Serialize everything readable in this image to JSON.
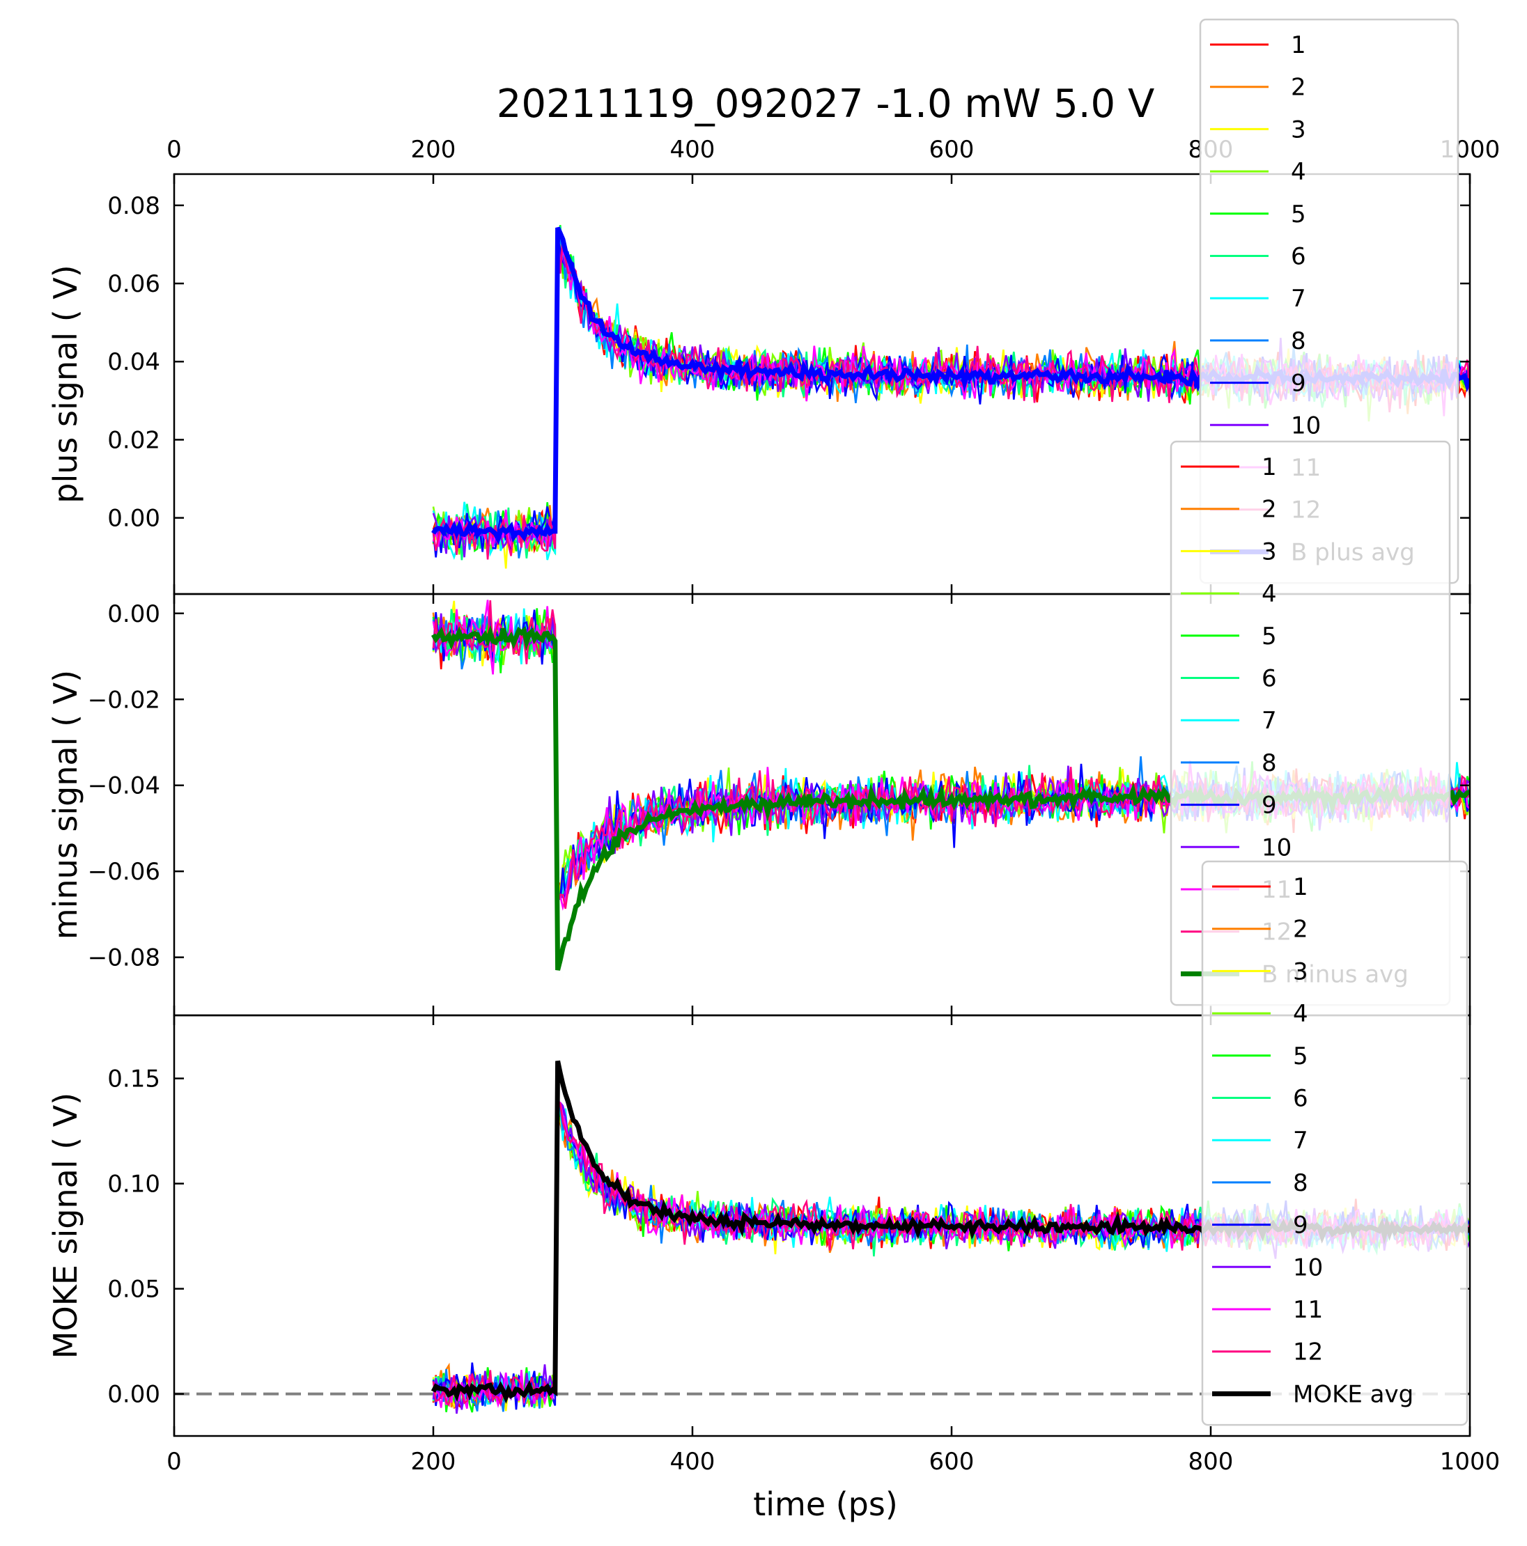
{
  "figure": {
    "title": "20211119_092027    -1.0 mW    5.0 V",
    "xlabel": "time (ps)"
  },
  "chart_data": [
    {
      "type": "line",
      "panel": "plus",
      "ylabel": "plus signal  ( V)",
      "xlim": [
        0,
        1000
      ],
      "ylim": [
        -0.0195,
        0.088
      ],
      "xticks": [
        "0",
        "200",
        "400",
        "600",
        "800",
        "1000"
      ],
      "yticks": [
        0.0,
        0.02,
        0.04,
        0.06,
        0.08
      ],
      "ytick_labels": [
        "0.00",
        "0.02",
        "0.04",
        "0.06",
        "0.08"
      ],
      "x_range": [
        200,
        1000
      ],
      "step_time": 296,
      "baseline": -0.0035,
      "peak": 0.068,
      "tail": 0.0355,
      "decay_ps": 28,
      "slow_offset": 0.0035,
      "slow_decay_ps": 250,
      "noise": 0.0028,
      "series": [
        {
          "name": "1",
          "color": "#ff0000"
        },
        {
          "name": "2",
          "color": "#ff7f00"
        },
        {
          "name": "3",
          "color": "#ffff00"
        },
        {
          "name": "4",
          "color": "#80ff00"
        },
        {
          "name": "5",
          "color": "#00ff00"
        },
        {
          "name": "6",
          "color": "#00ff80"
        },
        {
          "name": "7",
          "color": "#00ffff"
        },
        {
          "name": "8",
          "color": "#0080ff"
        },
        {
          "name": "9",
          "color": "#0000ff"
        },
        {
          "name": "10",
          "color": "#7f00ff"
        },
        {
          "name": "11",
          "color": "#ff00ff"
        },
        {
          "name": "12",
          "color": "#ff0080"
        }
      ],
      "avg": {
        "name": "B plus avg",
        "color": "#0000ff",
        "peak": 0.075
      }
    },
    {
      "type": "line",
      "panel": "minus",
      "ylabel": "minus signal  ( V)",
      "xlim": [
        0,
        1000
      ],
      "ylim": [
        -0.0935,
        0.0045
      ],
      "xticks": [
        "0",
        "200",
        "400",
        "600",
        "800",
        "1000"
      ],
      "yticks": [
        0.0,
        -0.02,
        -0.04,
        -0.06,
        -0.08
      ],
      "ytick_labels": [
        "0.00",
        "−0.02",
        "−0.04",
        "−0.06",
        "−0.08"
      ],
      "x_range": [
        200,
        1000
      ],
      "step_time": 296,
      "baseline": -0.0055,
      "peak": -0.072,
      "tail": -0.0425,
      "decay_ps": 30,
      "slow_offset": -0.003,
      "slow_decay_ps": 250,
      "noise": 0.0028,
      "series": [
        {
          "name": "1",
          "color": "#ff0000"
        },
        {
          "name": "2",
          "color": "#ff7f00"
        },
        {
          "name": "3",
          "color": "#ffff00"
        },
        {
          "name": "4",
          "color": "#80ff00"
        },
        {
          "name": "5",
          "color": "#00ff00"
        },
        {
          "name": "6",
          "color": "#00ff80"
        },
        {
          "name": "7",
          "color": "#00ffff"
        },
        {
          "name": "8",
          "color": "#0080ff"
        },
        {
          "name": "9",
          "color": "#0000ff"
        },
        {
          "name": "10",
          "color": "#7f00ff"
        },
        {
          "name": "11",
          "color": "#ff00ff"
        },
        {
          "name": "12",
          "color": "#ff0080"
        }
      ],
      "avg": {
        "name": "B minus avg",
        "color": "#008000",
        "peak": -0.083
      }
    },
    {
      "type": "line",
      "panel": "moke",
      "ylabel": "MOKE signal ( V)",
      "xlim": [
        0,
        1000
      ],
      "ylim": [
        -0.02,
        0.18
      ],
      "xticks": [
        "0",
        "200",
        "400",
        "600",
        "800",
        "1000"
      ],
      "yticks": [
        0.0,
        0.05,
        0.1,
        0.15
      ],
      "ytick_labels": [
        "0.00",
        "0.05",
        "0.10",
        "0.15"
      ],
      "x_range": [
        200,
        1000
      ],
      "step_time": 296,
      "baseline": 0.002,
      "peak": 0.138,
      "tail": 0.078,
      "decay_ps": 28,
      "slow_offset": 0.006,
      "slow_decay_ps": 250,
      "noise": 0.0045,
      "zero_line": {
        "y": 0.0,
        "color": "#808080",
        "style": "dashed"
      },
      "series": [
        {
          "name": "1",
          "color": "#ff0000"
        },
        {
          "name": "2",
          "color": "#ff7f00"
        },
        {
          "name": "3",
          "color": "#ffff00"
        },
        {
          "name": "4",
          "color": "#80ff00"
        },
        {
          "name": "5",
          "color": "#00ff00"
        },
        {
          "name": "6",
          "color": "#00ff80"
        },
        {
          "name": "7",
          "color": "#00ffff"
        },
        {
          "name": "8",
          "color": "#0080ff"
        },
        {
          "name": "9",
          "color": "#0000ff"
        },
        {
          "name": "10",
          "color": "#7f00ff"
        },
        {
          "name": "11",
          "color": "#ff00ff"
        },
        {
          "name": "12",
          "color": "#ff0080"
        }
      ],
      "avg": {
        "name": "MOKE avg",
        "color": "#000000",
        "peak": 0.158
      }
    }
  ]
}
